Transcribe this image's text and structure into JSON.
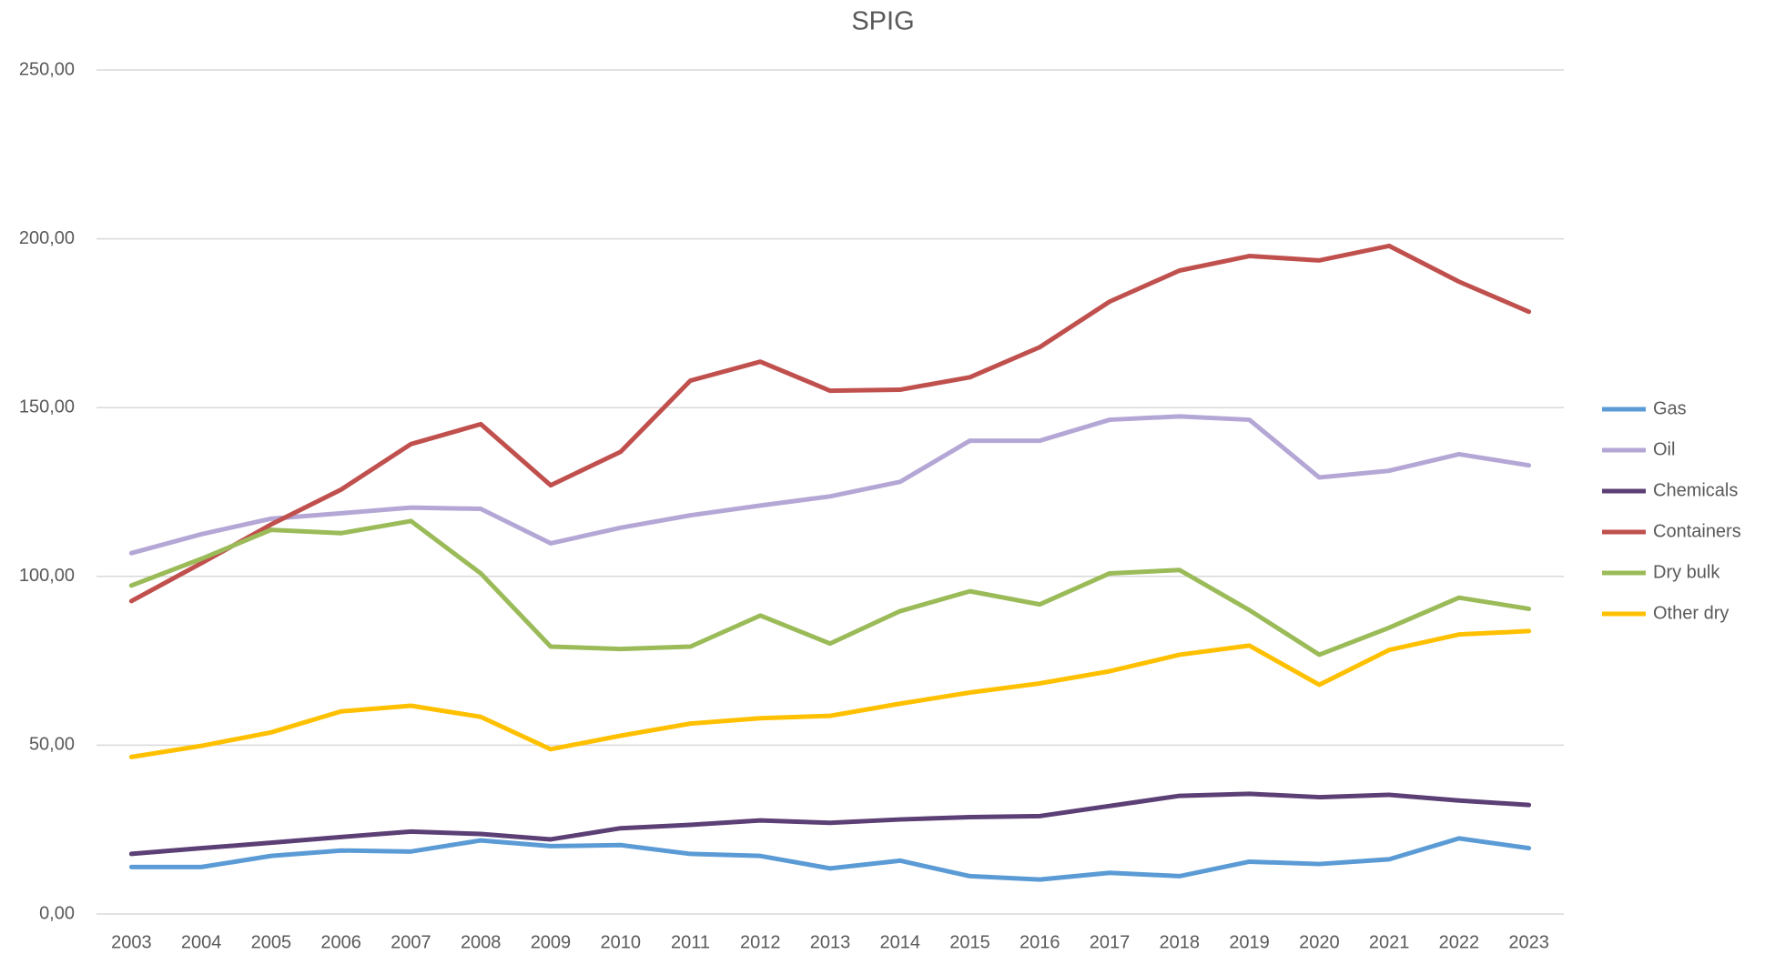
{
  "chart_data": {
    "type": "line",
    "title": "SPIG",
    "categories": [
      "2003",
      "2004",
      "2005",
      "2006",
      "2007",
      "2008",
      "2009",
      "2010",
      "2011",
      "2012",
      "2013",
      "2014",
      "2015",
      "2016",
      "2017",
      "2018",
      "2019",
      "2020",
      "2021",
      "2022",
      "2023"
    ],
    "series": [
      {
        "name": "Gas",
        "color": "#5b9bd5",
        "values": [
          13.9,
          13.9,
          17.2,
          18.8,
          18.5,
          21.8,
          20.1,
          20.4,
          17.8,
          17.2,
          13.5,
          15.8,
          11.2,
          10.2,
          12.2,
          11.2,
          15.5,
          14.8,
          16.2,
          22.4,
          19.5
        ]
      },
      {
        "name": "Oil",
        "color": "#b4a7d6",
        "values": [
          106.9,
          112.5,
          117.1,
          118.7,
          120.4,
          120.0,
          109.8,
          114.4,
          118.1,
          121.0,
          123.7,
          128.0,
          140.2,
          140.2,
          146.4,
          147.4,
          146.4,
          129.3,
          131.3,
          136.2,
          132.9
        ]
      },
      {
        "name": "Chemicals",
        "color": "#5b3f75",
        "values": [
          17.8,
          19.5,
          21.1,
          22.8,
          24.4,
          23.7,
          22.1,
          25.4,
          26.4,
          27.7,
          27.0,
          28.0,
          28.7,
          29.0,
          32.0,
          35.0,
          35.6,
          34.6,
          35.3,
          33.6,
          32.3
        ]
      },
      {
        "name": "Containers",
        "color": "#c0504d",
        "values": [
          92.7,
          103.9,
          115.4,
          125.7,
          139.2,
          145.1,
          127.0,
          136.9,
          158.0,
          163.6,
          155.0,
          155.3,
          159.0,
          167.9,
          181.4,
          190.6,
          194.9,
          193.6,
          197.9,
          187.3,
          178.4
        ]
      },
      {
        "name": "Dry bulk",
        "color": "#9bbb59",
        "values": [
          97.3,
          105.2,
          113.8,
          112.8,
          116.4,
          100.9,
          79.2,
          78.5,
          79.2,
          88.4,
          80.1,
          89.7,
          95.6,
          91.7,
          100.9,
          101.9,
          90.0,
          76.8,
          84.8,
          93.7,
          90.4
        ]
      },
      {
        "name": "Other dry",
        "color": "#ffc000",
        "values": [
          46.5,
          49.8,
          53.8,
          60.0,
          61.7,
          58.4,
          48.8,
          52.8,
          56.4,
          58.0,
          58.7,
          62.3,
          65.6,
          68.3,
          71.9,
          76.8,
          79.5,
          67.9,
          78.2,
          82.8,
          83.8
        ]
      }
    ],
    "ylim": [
      0,
      250
    ],
    "yticks": [
      {
        "value": 0,
        "label": "0,00"
      },
      {
        "value": 50,
        "label": "50,00"
      },
      {
        "value": 100,
        "label": "100,00"
      },
      {
        "value": 150,
        "label": "150,00"
      },
      {
        "value": 200,
        "label": "200,00"
      },
      {
        "value": 250,
        "label": "250,00"
      }
    ],
    "grid": true,
    "legend": "right"
  }
}
